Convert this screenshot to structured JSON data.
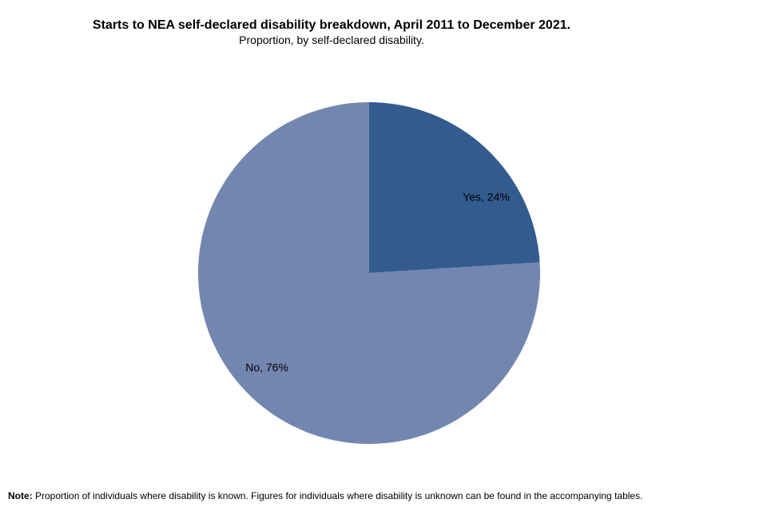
{
  "chart_data": {
    "type": "pie",
    "title": "Starts to NEA self-declared disability breakdown, April 2011 to December 2021.",
    "subtitle": "Proportion, by self-declared disability.",
    "slices": [
      {
        "label": "Yes, 24%",
        "category": "Yes",
        "value": 24,
        "color": "#335b8e"
      },
      {
        "label": "No, 76%",
        "category": "No",
        "value": 76,
        "color": "#7386b0"
      }
    ],
    "legend": "none",
    "start_angle": "12 o'clock",
    "direction": "clockwise"
  },
  "note": {
    "label": "Note:",
    "text": " Proportion of individuals where disability is known. Figures for individuals where disability is unknown can be found in the accompanying tables."
  }
}
